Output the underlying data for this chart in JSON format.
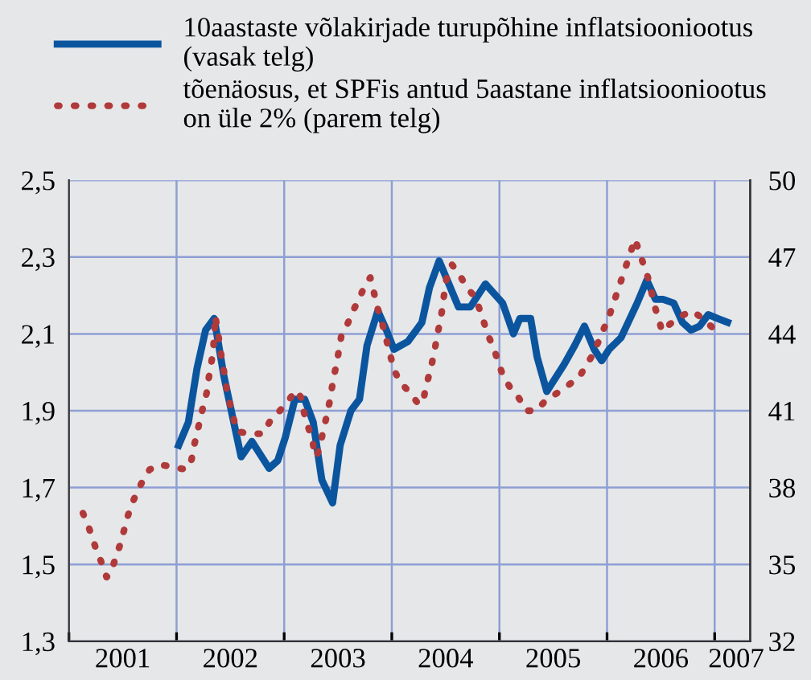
{
  "chart_data": {
    "type": "line",
    "series": [
      {
        "name": "10aastaste võlakirjade turupõhine inflatsiooniootus\n(vasak telg)",
        "color": "#0b559f",
        "line_style": "solid",
        "x": [
          2002.02,
          2002.11,
          2002.19,
          2002.27,
          2002.35,
          2002.44,
          2002.6,
          2002.7,
          2002.86,
          2002.94,
          2003.01,
          2003.1,
          2003.19,
          2003.27,
          2003.35,
          2003.45,
          2003.52,
          2003.62,
          2003.7,
          2003.77,
          2003.87,
          2003.95,
          2004.02,
          2004.15,
          2004.28,
          2004.35,
          2004.44,
          2004.62,
          2004.73,
          2004.87,
          2005.03,
          2005.13,
          2005.19,
          2005.29,
          2005.35,
          2005.44,
          2005.6,
          2005.7,
          2005.79,
          2005.88,
          2005.95,
          2006.02,
          2006.13,
          2006.28,
          2006.37,
          2006.45,
          2006.52,
          2006.62,
          2006.7,
          2006.78,
          2006.86,
          2006.94,
          2007.03,
          2007.12
        ],
        "values": [
          1.81,
          1.87,
          2.01,
          2.11,
          2.14,
          1.99,
          1.78,
          1.82,
          1.75,
          1.77,
          1.83,
          1.93,
          1.93,
          1.87,
          1.72,
          1.66,
          1.81,
          1.9,
          1.93,
          2.07,
          2.16,
          2.11,
          2.06,
          2.08,
          2.13,
          2.22,
          2.29,
          2.17,
          2.17,
          2.23,
          2.18,
          2.1,
          2.14,
          2.14,
          2.04,
          1.95,
          2.02,
          2.07,
          2.12,
          2.06,
          2.03,
          2.06,
          2.09,
          2.18,
          2.24,
          2.19,
          2.19,
          2.18,
          2.13,
          2.11,
          2.12,
          2.15,
          2.14,
          2.13
        ]
      },
      {
        "name": "tõenäosus, et SPFis antud 5aastane inflatsiooniootus\non üle 2% (parem telg)",
        "color": "#b03a3a",
        "line_style": "dotted",
        "axis": "y2",
        "x": [
          2001.13,
          2001.18,
          2001.22,
          2001.26,
          2001.31,
          2001.35,
          2001.39,
          2001.43,
          2001.47,
          2001.51,
          2001.54,
          2001.58,
          2001.63,
          2001.69,
          2001.75,
          2001.84,
          2001.97,
          2002.09,
          2002.14,
          2002.16,
          2002.19,
          2002.22,
          2002.25,
          2002.28,
          2002.3,
          2002.32,
          2002.34,
          2002.36,
          2002.39,
          2002.41,
          2002.43,
          2002.45,
          2002.47,
          2002.5,
          2002.53,
          2002.56,
          2002.67,
          2002.8,
          2002.87,
          2002.96,
          2003.04,
          2003.11,
          2003.16,
          2003.18,
          2003.22,
          2003.26,
          2003.28,
          2003.3,
          2003.34,
          2003.36,
          2003.39,
          2003.42,
          2003.44,
          2003.46,
          2003.49,
          2003.51,
          2003.53,
          2003.59,
          2003.64,
          2003.7,
          2003.75,
          2003.8,
          2003.83,
          2003.86,
          2003.9,
          2003.93,
          2003.96,
          2004.02,
          2004.08,
          2004.17,
          2004.24,
          2004.29,
          2004.31,
          2004.34,
          2004.37,
          2004.4,
          2004.42,
          2004.45,
          2004.47,
          2004.5,
          2004.53,
          2004.56,
          2004.63,
          2004.7,
          2004.78,
          2004.82,
          2004.86,
          2004.9,
          2004.95,
          2004.99,
          2005.03,
          2005.1,
          2005.18,
          2005.25,
          2005.34,
          2005.43,
          2005.54,
          2005.64,
          2005.74,
          2005.81,
          2005.87,
          2005.92,
          2005.97,
          2006.02,
          2006.06,
          2006.1,
          2006.14,
          2006.18,
          2006.22,
          2006.26,
          2006.3,
          2006.34,
          2006.38,
          2006.41,
          2006.44,
          2006.48,
          2006.51,
          2006.59,
          2006.69,
          2006.79,
          2006.89,
          2006.99
        ],
        "values": [
          37.0,
          36.5,
          36.0,
          35.5,
          35.0,
          34.5,
          34.7,
          35.2,
          35.7,
          36.3,
          36.8,
          37.3,
          37.8,
          38.3,
          38.7,
          38.9,
          38.8,
          38.7,
          39.1,
          39.6,
          40.1,
          40.7,
          41.2,
          41.7,
          42.3,
          42.8,
          43.3,
          44.7,
          43.9,
          43.3,
          42.8,
          42.3,
          41.7,
          41.2,
          40.7,
          40.2,
          40.1,
          40.1,
          40.6,
          41.0,
          41.4,
          41.8,
          41.5,
          41.0,
          40.4,
          39.9,
          39.4,
          39.2,
          39.7,
          40.2,
          40.7,
          41.3,
          41.8,
          42.3,
          42.9,
          43.4,
          43.9,
          44.4,
          44.9,
          45.4,
          45.9,
          46.2,
          45.7,
          45.1,
          44.6,
          44.1,
          43.6,
          42.6,
          42.1,
          41.7,
          41.3,
          41.3,
          41.8,
          42.3,
          42.8,
          43.4,
          43.9,
          44.5,
          45.0,
          46.0,
          46.5,
          46.7,
          46.3,
          45.8,
          45.4,
          44.9,
          44.4,
          43.9,
          43.4,
          42.9,
          42.4,
          41.9,
          41.5,
          41.0,
          41.0,
          41.4,
          41.7,
          42.0,
          42.3,
          42.8,
          43.2,
          43.7,
          44.2,
          44.7,
          45.2,
          45.7,
          46.2,
          46.7,
          47.2,
          47.7,
          47.2,
          46.7,
          46.2,
          45.7,
          45.1,
          44.6,
          44.1,
          44.4,
          44.7,
          44.9,
          44.6,
          44.2
        ]
      }
    ],
    "xlim": [
      2001.0,
      2007.33
    ],
    "xticks": [
      {
        "value": 2001.0,
        "label": null
      },
      {
        "value": 2002.0,
        "label": null
      },
      {
        "value": 2003.0,
        "label": null
      },
      {
        "value": 2004.0,
        "label": null
      },
      {
        "value": 2005.0,
        "label": null
      },
      {
        "value": 2006.0,
        "label": null
      },
      {
        "value": 2007.0,
        "label": null
      },
      {
        "value": 2001.5,
        "label": "2001"
      },
      {
        "value": 2002.5,
        "label": "2002"
      },
      {
        "value": 2003.5,
        "label": "2003"
      },
      {
        "value": 2004.5,
        "label": "2004"
      },
      {
        "value": 2005.5,
        "label": "2005"
      },
      {
        "value": 2006.5,
        "label": "2006"
      },
      {
        "value": 2007.2,
        "label": "2007"
      }
    ],
    "ylim": [
      1.3,
      2.5
    ],
    "yticks": [
      {
        "value": 1.3,
        "label": "1,3"
      },
      {
        "value": 1.5,
        "label": "1,5"
      },
      {
        "value": 1.7,
        "label": "1,7"
      },
      {
        "value": 1.9,
        "label": "1,9"
      },
      {
        "value": 2.1,
        "label": "2,1"
      },
      {
        "value": 2.3,
        "label": "2,3"
      },
      {
        "value": 2.5,
        "label": "2,5"
      }
    ],
    "y2lim": [
      32,
      50
    ],
    "y2ticks": [
      32,
      35,
      38,
      41,
      44,
      47,
      50
    ],
    "grid": true,
    "legend": "top"
  }
}
